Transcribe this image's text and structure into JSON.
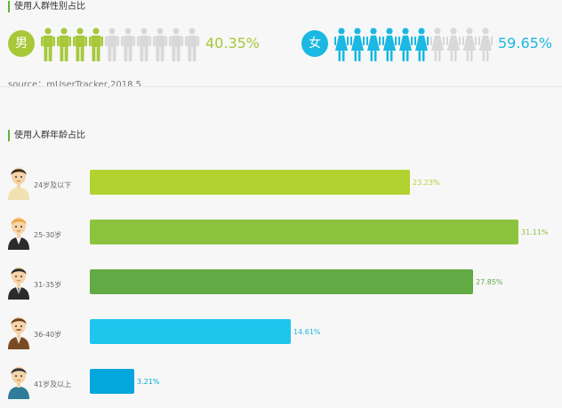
{
  "gender": {
    "title": "使用人群性别占比",
    "male": {
      "label": "男",
      "percent": "40.35%",
      "highlighted": 4,
      "total": 10,
      "color": "#a6c839"
    },
    "female": {
      "label": "女",
      "percent": "59.65%",
      "highlighted": 6,
      "total": 10,
      "color": "#1ab8e2"
    },
    "inactive_color": "#d8d8d8"
  },
  "source": "source：mUserTracker,2018.5",
  "age": {
    "title": "使用人群年龄占比",
    "rows": [
      {
        "label": "24岁及以下",
        "value": "23.23%",
        "share": 23.23,
        "color": "#b1d22f",
        "text_color": "#b1d22f",
        "icon": "young-man-avatar-icon"
      },
      {
        "label": "25-30岁",
        "value": "31.11%",
        "share": 31.11,
        "color": "#8bc33e",
        "text_color": "#8bc33e",
        "icon": "blond-man-avatar-icon"
      },
      {
        "label": "31-35岁",
        "value": "27.85%",
        "share": 27.85,
        "color": "#62aa43",
        "text_color": "#62aa43",
        "icon": "suited-man-avatar-icon"
      },
      {
        "label": "36-40岁",
        "value": "14.61%",
        "share": 14.61,
        "color": "#1ec6ee",
        "text_color": "#1ab8e2",
        "icon": "mustache-man-avatar-icon"
      },
      {
        "label": "41岁及以上",
        "value": "3.21%",
        "share": 3.21,
        "color": "#04a7dd",
        "text_color": "#04a7dd",
        "icon": "older-man-avatar-icon"
      }
    ]
  }
}
